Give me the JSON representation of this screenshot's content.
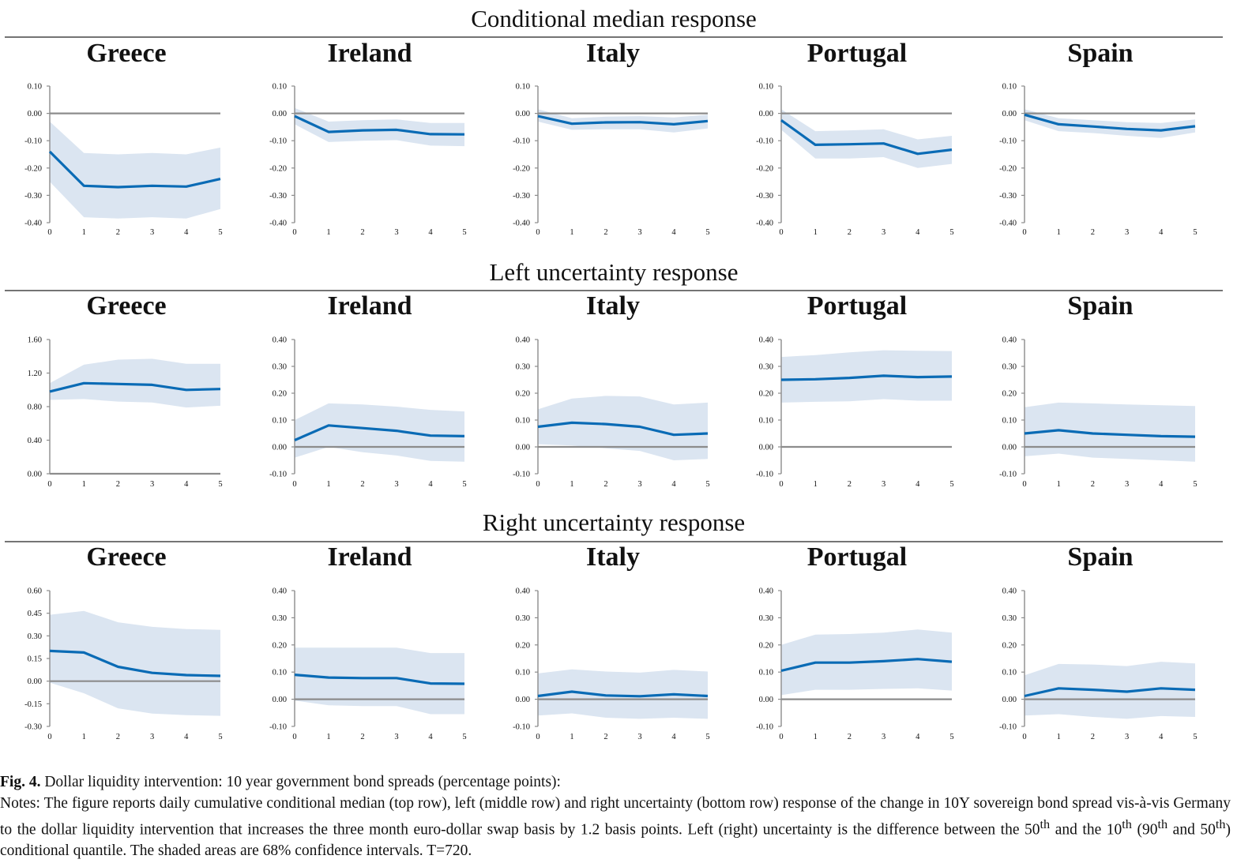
{
  "figure": {
    "rows": [
      {
        "title": "Conditional median response",
        "panels": [
          {
            "country": "Greece",
            "ticks": [
              "0.10",
              "0.00",
              "-0.10",
              "-0.20",
              "-0.30",
              "-0.40"
            ],
            "tmin": -0.4,
            "tmax": 0.1,
            "median": [
              -0.14,
              -0.265,
              -0.27,
              -0.265,
              -0.268,
              -0.24
            ],
            "lower": [
              -0.25,
              -0.38,
              -0.385,
              -0.38,
              -0.385,
              -0.35
            ],
            "upper": [
              -0.03,
              -0.145,
              -0.15,
              -0.145,
              -0.15,
              -0.125
            ]
          },
          {
            "country": "Ireland",
            "ticks": [
              "0.10",
              "0.00",
              "-0.10",
              "-0.20",
              "-0.30",
              "-0.40"
            ],
            "tmin": -0.4,
            "tmax": 0.1,
            "median": [
              -0.01,
              -0.068,
              -0.062,
              -0.06,
              -0.076,
              -0.077
            ],
            "lower": [
              -0.04,
              -0.105,
              -0.1,
              -0.098,
              -0.118,
              -0.12
            ],
            "upper": [
              0.02,
              -0.03,
              -0.025,
              -0.022,
              -0.035,
              -0.035
            ]
          },
          {
            "country": "Italy",
            "ticks": [
              "0.10",
              "0.00",
              "-0.10",
              "-0.20",
              "-0.30",
              "-0.40"
            ],
            "tmin": -0.4,
            "tmax": 0.1,
            "median": [
              -0.01,
              -0.038,
              -0.033,
              -0.032,
              -0.04,
              -0.028
            ],
            "lower": [
              -0.03,
              -0.06,
              -0.058,
              -0.058,
              -0.07,
              -0.055
            ],
            "upper": [
              0.015,
              -0.018,
              -0.012,
              -0.01,
              -0.015,
              -0.005
            ]
          },
          {
            "country": "Portugal",
            "ticks": [
              "0.10",
              "0.00",
              "-0.10",
              "-0.20",
              "-0.30",
              "-0.40"
            ],
            "tmin": -0.4,
            "tmax": 0.1,
            "median": [
              -0.025,
              -0.115,
              -0.113,
              -0.11,
              -0.148,
              -0.133
            ],
            "lower": [
              -0.06,
              -0.165,
              -0.165,
              -0.16,
              -0.2,
              -0.185
            ],
            "upper": [
              0.015,
              -0.065,
              -0.062,
              -0.058,
              -0.095,
              -0.082
            ]
          },
          {
            "country": "Spain",
            "ticks": [
              "0.10",
              "0.00",
              "-0.10",
              "-0.20",
              "-0.30",
              "-0.40"
            ],
            "tmin": -0.4,
            "tmax": 0.1,
            "median": [
              -0.005,
              -0.04,
              -0.048,
              -0.057,
              -0.062,
              -0.047
            ],
            "lower": [
              -0.025,
              -0.065,
              -0.072,
              -0.082,
              -0.09,
              -0.07
            ],
            "upper": [
              0.015,
              -0.018,
              -0.025,
              -0.032,
              -0.035,
              -0.022
            ]
          }
        ]
      },
      {
        "title": "Left uncertainty response",
        "panels": [
          {
            "country": "Greece",
            "ticks": [
              "1.60",
              "1.20",
              "0.80",
              "0.40",
              "0.00"
            ],
            "tmin": 0.0,
            "tmax": 1.6,
            "median": [
              0.98,
              1.08,
              1.07,
              1.06,
              1.0,
              1.01
            ],
            "lower": [
              0.88,
              0.89,
              0.86,
              0.85,
              0.79,
              0.81
            ],
            "upper": [
              1.08,
              1.3,
              1.36,
              1.37,
              1.31,
              1.31
            ]
          },
          {
            "country": "Ireland",
            "ticks": [
              "0.40",
              "0.30",
              "0.20",
              "0.10",
              "0.00",
              "-0.10"
            ],
            "tmin": -0.1,
            "tmax": 0.4,
            "median": [
              0.025,
              0.08,
              0.07,
              0.06,
              0.042,
              0.04
            ],
            "lower": [
              -0.04,
              0.0,
              -0.02,
              -0.032,
              -0.052,
              -0.055
            ],
            "upper": [
              0.1,
              0.162,
              0.158,
              0.15,
              0.138,
              0.132
            ]
          },
          {
            "country": "Italy",
            "ticks": [
              "0.40",
              "0.30",
              "0.20",
              "0.10",
              "0.00",
              "-0.10"
            ],
            "tmin": -0.1,
            "tmax": 0.4,
            "median": [
              0.075,
              0.09,
              0.085,
              0.075,
              0.045,
              0.05
            ],
            "lower": [
              0.01,
              0.005,
              -0.005,
              -0.015,
              -0.05,
              -0.045
            ],
            "upper": [
              0.14,
              0.18,
              0.19,
              0.188,
              0.158,
              0.165
            ]
          },
          {
            "country": "Portugal",
            "ticks": [
              "0.40",
              "0.30",
              "0.20",
              "0.10",
              "0.00",
              "-0.10"
            ],
            "tmin": -0.1,
            "tmax": 0.4,
            "median": [
              0.25,
              0.252,
              0.257,
              0.265,
              0.26,
              0.262
            ],
            "lower": [
              0.165,
              0.168,
              0.17,
              0.178,
              0.172,
              0.172
            ],
            "upper": [
              0.335,
              0.342,
              0.352,
              0.36,
              0.358,
              0.357
            ]
          },
          {
            "country": "Spain",
            "ticks": [
              "0.40",
              "0.30",
              "0.20",
              "0.10",
              "0.00",
              "-0.10"
            ],
            "tmin": -0.1,
            "tmax": 0.4,
            "median": [
              0.05,
              0.062,
              0.05,
              0.045,
              0.04,
              0.038
            ],
            "lower": [
              -0.035,
              -0.025,
              -0.04,
              -0.045,
              -0.05,
              -0.055
            ],
            "upper": [
              0.148,
              0.165,
              0.162,
              0.158,
              0.155,
              0.152
            ]
          }
        ]
      },
      {
        "title": "Right uncertainty response",
        "panels": [
          {
            "country": "Greece",
            "ticks": [
              "0.60",
              "0.45",
              "0.30",
              "0.15",
              "0.00",
              "-0.15",
              "-0.30"
            ],
            "tmin": -0.3,
            "tmax": 0.6,
            "median": [
              0.2,
              0.19,
              0.095,
              0.055,
              0.04,
              0.035
            ],
            "lower": [
              -0.01,
              -0.08,
              -0.18,
              -0.215,
              -0.225,
              -0.23
            ],
            "upper": [
              0.44,
              0.465,
              0.39,
              0.36,
              0.345,
              0.34
            ]
          },
          {
            "country": "Ireland",
            "ticks": [
              "0.40",
              "0.30",
              "0.20",
              "0.10",
              "0.00",
              "-0.10"
            ],
            "tmin": -0.1,
            "tmax": 0.4,
            "median": [
              0.09,
              0.08,
              0.078,
              0.078,
              0.058,
              0.057
            ],
            "lower": [
              -0.005,
              -0.022,
              -0.025,
              -0.025,
              -0.055,
              -0.055
            ],
            "upper": [
              0.19,
              0.19,
              0.19,
              0.19,
              0.17,
              0.17
            ]
          },
          {
            "country": "Italy",
            "ticks": [
              "0.40",
              "0.30",
              "0.20",
              "0.10",
              "0.00",
              "-0.10"
            ],
            "tmin": -0.1,
            "tmax": 0.4,
            "median": [
              0.012,
              0.028,
              0.014,
              0.011,
              0.018,
              0.012
            ],
            "lower": [
              -0.06,
              -0.052,
              -0.068,
              -0.072,
              -0.068,
              -0.072
            ],
            "upper": [
              0.095,
              0.11,
              0.102,
              0.098,
              0.108,
              0.102
            ]
          },
          {
            "country": "Portugal",
            "ticks": [
              "0.40",
              "0.30",
              "0.20",
              "0.10",
              "0.00",
              "-0.10"
            ],
            "tmin": -0.1,
            "tmax": 0.4,
            "median": [
              0.105,
              0.135,
              0.135,
              0.14,
              0.148,
              0.138
            ],
            "lower": [
              0.015,
              0.035,
              0.035,
              0.038,
              0.04,
              0.032
            ],
            "upper": [
              0.2,
              0.238,
              0.24,
              0.245,
              0.257,
              0.245
            ]
          },
          {
            "country": "Spain",
            "ticks": [
              "0.40",
              "0.30",
              "0.20",
              "0.10",
              "0.00",
              "-0.10"
            ],
            "tmin": -0.1,
            "tmax": 0.4,
            "median": [
              0.012,
              0.04,
              0.035,
              0.028,
              0.04,
              0.035
            ],
            "lower": [
              -0.06,
              -0.055,
              -0.065,
              -0.072,
              -0.062,
              -0.065
            ],
            "upper": [
              0.088,
              0.13,
              0.128,
              0.122,
              0.138,
              0.132
            ]
          }
        ]
      }
    ],
    "xticks": [
      "0",
      "1",
      "2",
      "3",
      "4",
      "5"
    ],
    "colors": {
      "line": "#0a6bb5",
      "band": "#dbe5f1",
      "axis": "#8c8c8c",
      "zero": "#8c8c8c"
    }
  },
  "chart_data": {
    "type": "line",
    "title": "Conditional median response",
    "x": [
      0,
      1,
      2,
      3,
      4,
      5
    ]
  },
  "caption": {
    "fig_label": "Fig. 4.",
    "fig_title": "Dollar liquidity intervention: 10 year government bond spreads (percentage points):",
    "notes_1": "Notes: The figure reports daily cumulative conditional median (top row), left (middle row) and right uncertainty (bottom row) response of the change in 10Y sovereign bond spread vis-à-vis Germany to the dollar liquidity intervention that increases the three month euro-dollar swap basis by 1.2 basis points. Left (right) uncertainty is the difference between the 50",
    "sup_1": "th",
    "notes_2": " and the 10",
    "sup_2": "th",
    "notes_3": " (90",
    "sup_3": "th",
    "notes_4": " and 50",
    "sup_4": "th",
    "notes_5": ") conditional quantile. The shaded areas are 68% confidence intervals. T=720."
  }
}
